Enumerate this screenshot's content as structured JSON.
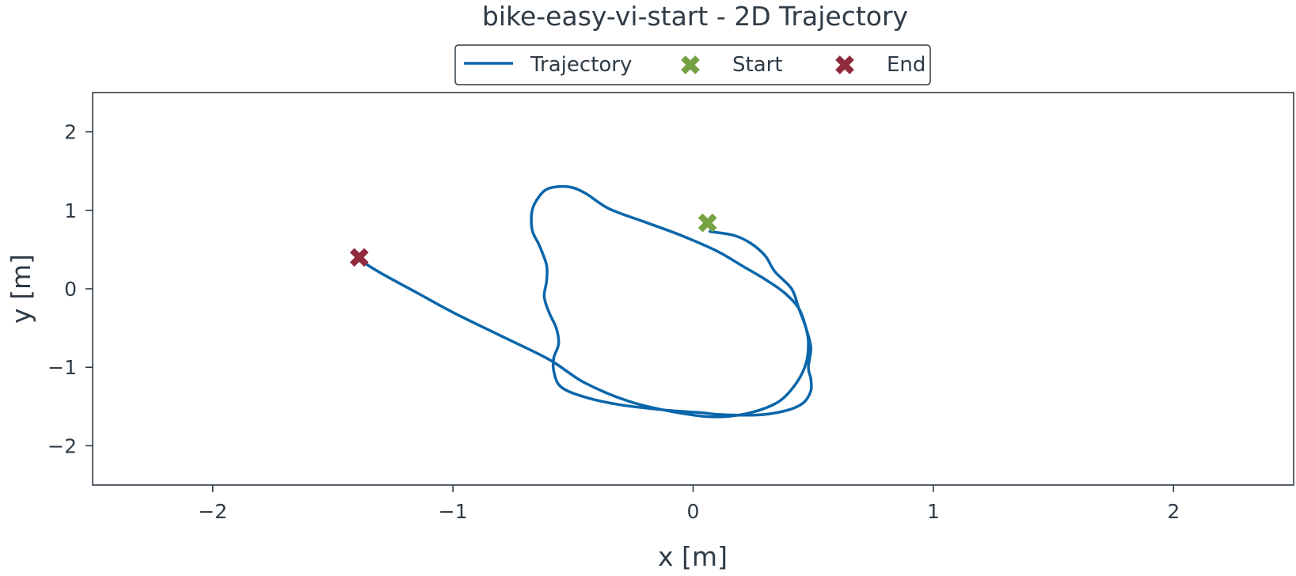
{
  "chart_data": {
    "type": "line",
    "title": "bike-easy-vi-start - 2D Trajectory",
    "xlabel": "x [m]",
    "ylabel": "y [m]",
    "xlim": [
      -2.5,
      2.5
    ],
    "ylim": [
      -2.5,
      2.5
    ],
    "xticks": [
      -2,
      -1,
      0,
      1,
      2
    ],
    "yticks": [
      -2,
      -1,
      0,
      1,
      2
    ],
    "xtick_labels": [
      "−2",
      "−1",
      "0",
      "1",
      "2"
    ],
    "ytick_labels": [
      "−2",
      "−1",
      "0",
      "1",
      "2"
    ],
    "grid": false,
    "legend": {
      "placement": "top-center",
      "entries": [
        "Trajectory",
        "Start",
        "End"
      ]
    },
    "colors": {
      "trajectory": "#0a66aa",
      "start": "#77a243",
      "end": "#8f2b3c",
      "axes": "#2f3b46",
      "text": "#2f3b46"
    },
    "series": [
      {
        "name": "Trajectory",
        "x": [
          0.07,
          0.17,
          0.24,
          0.3,
          0.34,
          0.41,
          0.44,
          0.47,
          0.49,
          0.48,
          0.49,
          0.49,
          0.46,
          0.4,
          0.3,
          0.2,
          0.1,
          0.04,
          -0.1,
          -0.3,
          -0.45,
          -0.55,
          -0.58,
          -0.58,
          -0.56,
          -0.57,
          -0.6,
          -0.62,
          -0.61,
          -0.61,
          -0.64,
          -0.67,
          -0.67,
          -0.64,
          -0.6,
          -0.52,
          -0.45,
          -0.35,
          -0.2,
          -0.05,
          0.1,
          0.2,
          0.3,
          0.38,
          0.44,
          0.47,
          0.48,
          0.47,
          0.43,
          0.36,
          0.25,
          0.12,
          -0.02,
          -0.25,
          -0.45,
          -0.6,
          -0.8,
          -1.0,
          -1.15,
          -1.3,
          -1.39
        ],
        "y": [
          0.73,
          0.68,
          0.58,
          0.42,
          0.22,
          0.0,
          -0.25,
          -0.5,
          -0.75,
          -1.0,
          -1.15,
          -1.3,
          -1.45,
          -1.54,
          -1.6,
          -1.61,
          -1.6,
          -1.58,
          -1.55,
          -1.48,
          -1.38,
          -1.25,
          -1.05,
          -0.88,
          -0.7,
          -0.5,
          -0.3,
          -0.1,
          0.1,
          0.3,
          0.55,
          0.75,
          1.0,
          1.18,
          1.28,
          1.3,
          1.22,
          1.02,
          0.85,
          0.68,
          0.48,
          0.3,
          0.12,
          -0.05,
          -0.25,
          -0.5,
          -0.7,
          -0.95,
          -1.2,
          -1.43,
          -1.57,
          -1.63,
          -1.6,
          -1.45,
          -1.2,
          -0.9,
          -0.6,
          -0.3,
          -0.05,
          0.2,
          0.37
        ]
      }
    ],
    "markers": [
      {
        "name": "Start",
        "x": 0.06,
        "y": 0.84
      },
      {
        "name": "End",
        "x": -1.39,
        "y": 0.4
      }
    ]
  }
}
